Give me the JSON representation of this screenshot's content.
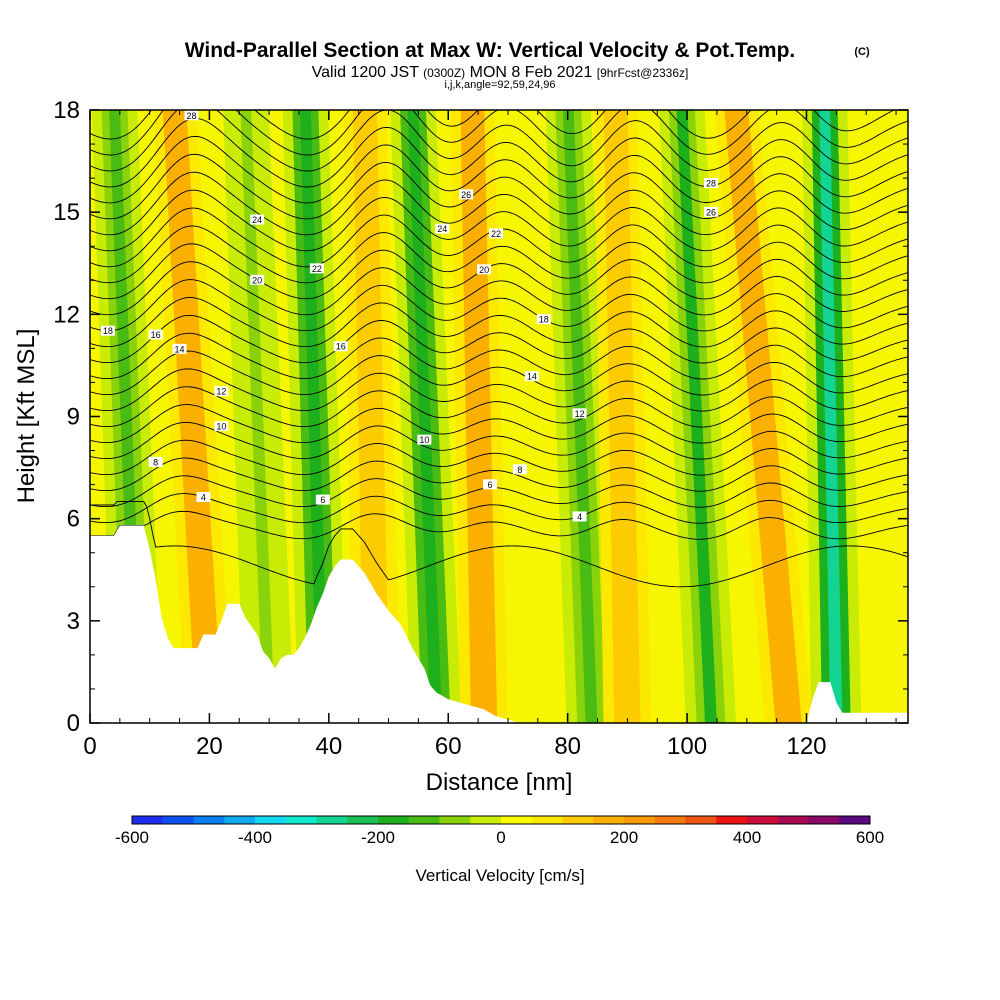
{
  "title": {
    "main": "Wind-Parallel Section at Max W: Vertical Velocity & Pot.Temp.",
    "copyright": "(C)",
    "valid_prefix": "Valid 1200 JST",
    "valid_utc": "(0300Z)",
    "valid_date": "MON 8 Feb 2021",
    "forecast": "[9hrFcst@2336z]",
    "section_info": "i,j,k,angle=92,59,24,96"
  },
  "colors": {
    "colorbar": [
      "#1d2cf0",
      "#0b4ff0",
      "#0a7df0",
      "#12aaee",
      "#16d7f0",
      "#10e8cc",
      "#14d494",
      "#1cc056",
      "#1eb01c",
      "#4abb12",
      "#8ad30a",
      "#c8ec06",
      "#fcfc00",
      "#fde800",
      "#fccc00",
      "#fbb000",
      "#f59a06",
      "#f47a10",
      "#ef5412",
      "#ec1414",
      "#cc0c3a",
      "#aa0a52",
      "#880a66",
      "#5a0880"
    ],
    "background_positive": "#f6f600",
    "terrain": "#ffffff",
    "contour_line": "#000000"
  },
  "chart_data": {
    "type": "contour",
    "xlabel": "Distance [nm]",
    "ylabel": "Height [Kft MSL]",
    "xlim": [
      0,
      137
    ],
    "ylim": [
      0,
      18
    ],
    "x_ticks": [
      0,
      20,
      40,
      60,
      80,
      100,
      120
    ],
    "y_ticks": [
      0,
      3,
      6,
      9,
      12,
      15,
      18
    ],
    "grid": false,
    "colorbar": {
      "label": "Vertical Velocity [cm/s]",
      "min": -600,
      "max": 600,
      "ticks": [
        -600,
        -400,
        -200,
        0,
        200,
        400,
        600
      ]
    },
    "downdraft_axes": [
      {
        "x_bottom": 8,
        "x_top": 4,
        "strength": -150
      },
      {
        "x_bottom": 30,
        "x_top": 26,
        "strength": -80
      },
      {
        "x_bottom": 39,
        "x_top": 36,
        "strength": -180
      },
      {
        "x_bottom": 58,
        "x_top": 54,
        "strength": -200
      },
      {
        "x_bottom": 84,
        "x_top": 80,
        "strength": -120
      },
      {
        "x_bottom": 104,
        "x_top": 99,
        "strength": -160
      },
      {
        "x_bottom": 125,
        "x_top": 123,
        "strength": -280
      }
    ],
    "updraft_axes": [
      {
        "x_bottom": 20,
        "x_top": 14,
        "strength": 180
      },
      {
        "x_bottom": 48,
        "x_top": 46,
        "strength": 120
      },
      {
        "x_bottom": 66,
        "x_top": 64,
        "strength": 150
      },
      {
        "x_bottom": 90,
        "x_top": 88,
        "strength": 100
      },
      {
        "x_bottom": 117,
        "x_top": 108,
        "strength": 190
      }
    ],
    "terrain_profile": [
      [
        0,
        5.5
      ],
      [
        4,
        5.5
      ],
      [
        5,
        5.8
      ],
      [
        9,
        5.8
      ],
      [
        10,
        5.1
      ],
      [
        11,
        4.2
      ],
      [
        12,
        3.1
      ],
      [
        13,
        2.5
      ],
      [
        14,
        2.2
      ],
      [
        18,
        2.2
      ],
      [
        19,
        2.6
      ],
      [
        21,
        2.6
      ],
      [
        22,
        3.0
      ],
      [
        23,
        3.5
      ],
      [
        25,
        3.5
      ],
      [
        26,
        3.1
      ],
      [
        28,
        2.6
      ],
      [
        29,
        2.1
      ],
      [
        30,
        1.9
      ],
      [
        31,
        1.6
      ],
      [
        32,
        1.9
      ],
      [
        33,
        2.0
      ],
      [
        34,
        2.0
      ],
      [
        35,
        2.2
      ],
      [
        36,
        2.5
      ],
      [
        37,
        2.9
      ],
      [
        38,
        3.4
      ],
      [
        39,
        3.8
      ],
      [
        40,
        4.3
      ],
      [
        41,
        4.6
      ],
      [
        42,
        4.8
      ],
      [
        44,
        4.8
      ],
      [
        46,
        4.4
      ],
      [
        47,
        4.1
      ],
      [
        48,
        3.8
      ],
      [
        50,
        3.3
      ],
      [
        52,
        2.9
      ],
      [
        54,
        2.2
      ],
      [
        56,
        1.6
      ],
      [
        57,
        1.1
      ],
      [
        58,
        0.9
      ],
      [
        60,
        0.7
      ],
      [
        64,
        0.5
      ],
      [
        66,
        0.4
      ],
      [
        68,
        0.2
      ],
      [
        70,
        0.1
      ],
      [
        72,
        0
      ],
      [
        120,
        0
      ],
      [
        121,
        0.7
      ],
      [
        122,
        1.2
      ],
      [
        124,
        1.2
      ],
      [
        125,
        0.6
      ],
      [
        126,
        0.3
      ],
      [
        130,
        0.3
      ],
      [
        137,
        0.3
      ]
    ],
    "isentropes": [
      {
        "value": 4,
        "base": 6.4,
        "label_x": 19,
        "label_xb": 82
      },
      {
        "value": 6,
        "base": 7.0,
        "label_x": 39,
        "label_xb": 67
      },
      {
        "value": 8,
        "base": 7.6,
        "label_x": 11,
        "label_xb": 72
      },
      {
        "value": 10,
        "base": 8.6,
        "label_x": 22,
        "label_xb": 56
      },
      {
        "value": 12,
        "base": 9.6,
        "label_x": 22,
        "label_xb": 82
      },
      {
        "value": 14,
        "base": 10.5,
        "label_x": 15,
        "label_xb": 74
      },
      {
        "value": 16,
        "base": 11.4,
        "label_x": 11,
        "label_xb": 42
      },
      {
        "value": 18,
        "base": 12.4,
        "label_x": 3,
        "label_xb": 76
      },
      {
        "value": 20,
        "base": 13.4,
        "label_x": 28,
        "label_xb": 66
      },
      {
        "value": 22,
        "base": 14.3,
        "label_x": 38,
        "label_xb": 68
      },
      {
        "value": 24,
        "base": 15.2,
        "label_x": 28,
        "label_xb": 59
      },
      {
        "value": 26,
        "base": 16.1,
        "label_x": 63,
        "label_xb": 104
      },
      {
        "value": 28,
        "base": 17.0,
        "label_x": 17,
        "label_xb": 104
      }
    ]
  }
}
